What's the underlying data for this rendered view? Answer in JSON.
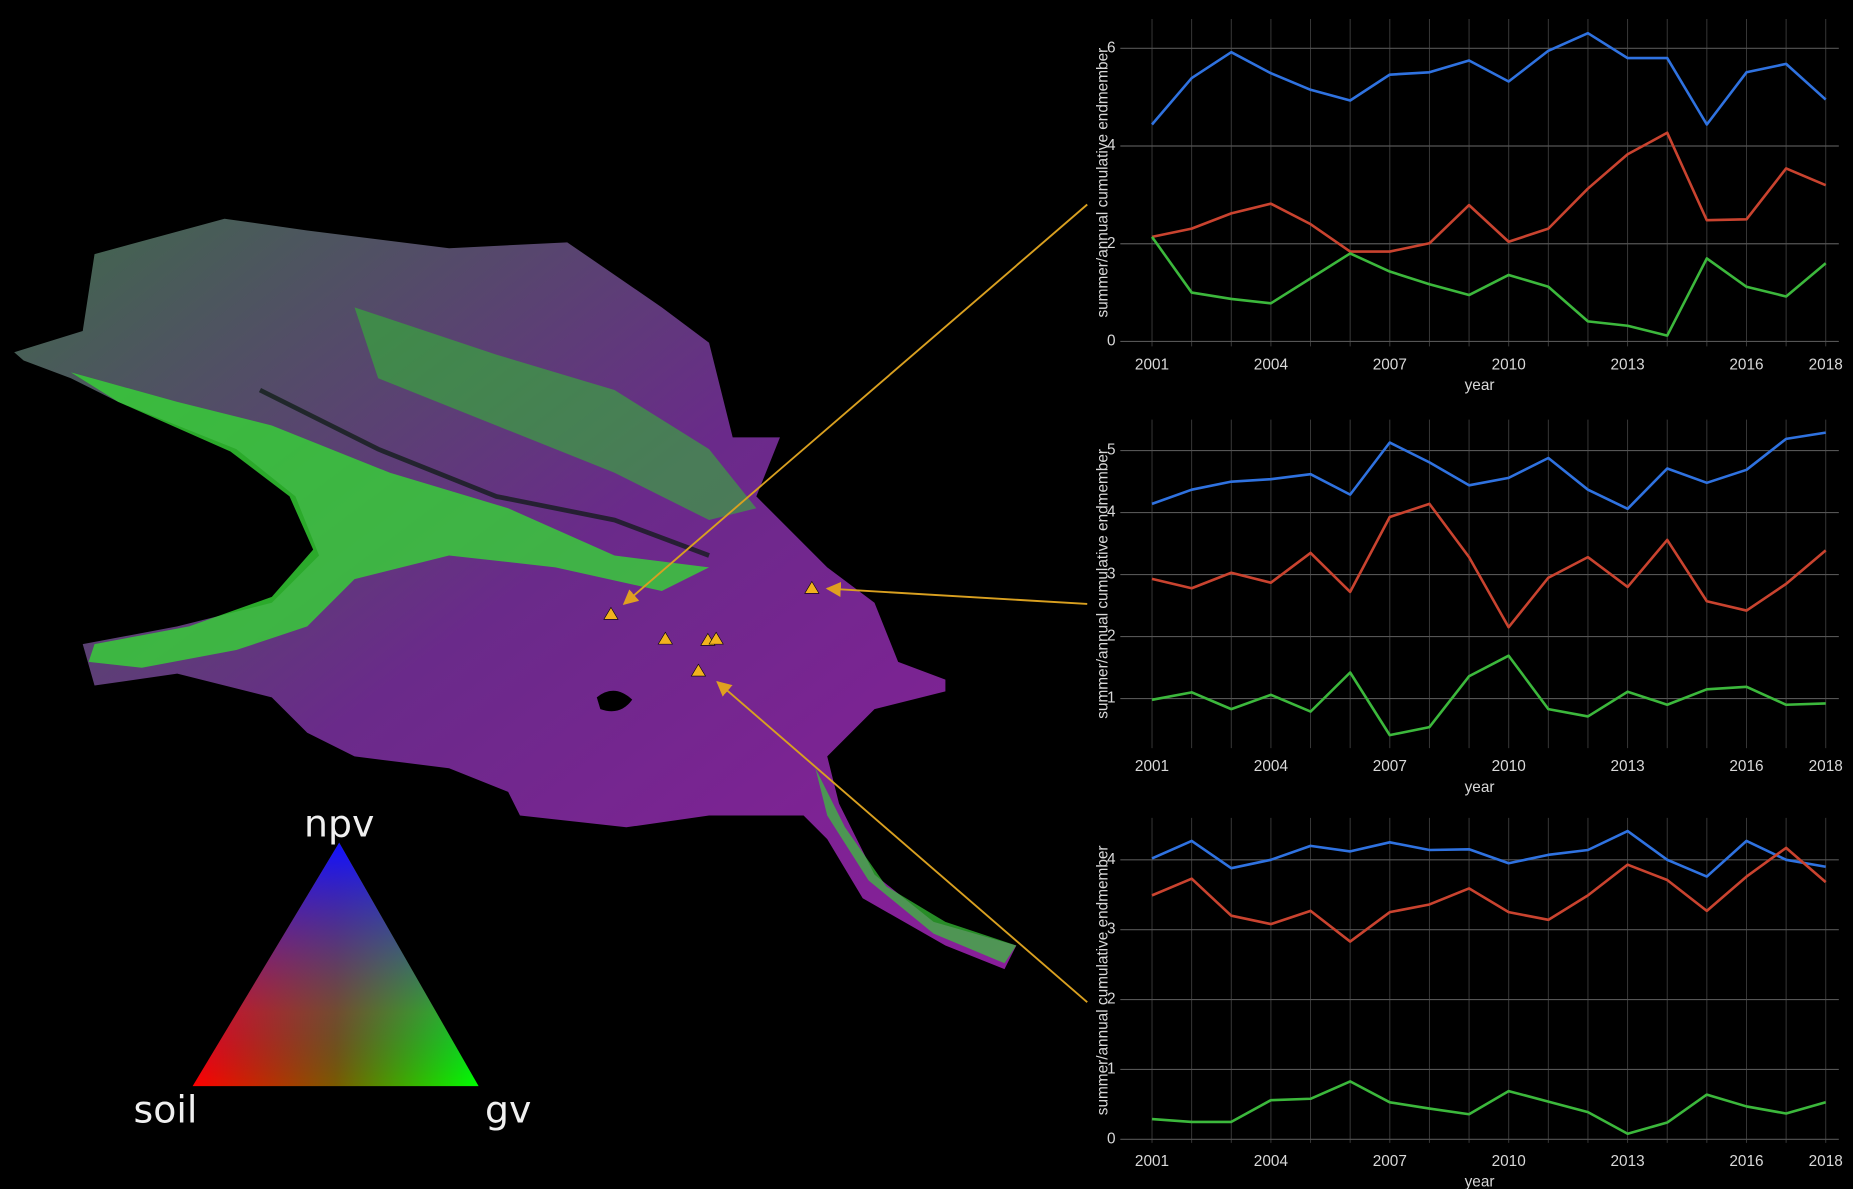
{
  "chart_data": [
    {
      "type": "line",
      "x_label": "year",
      "y_label": "summer/annual cumulative endmember",
      "x": [
        2001,
        2002,
        2003,
        2004,
        2005,
        2006,
        2007,
        2008,
        2009,
        2010,
        2011,
        2012,
        2013,
        2014,
        2015,
        2016,
        2017,
        2018
      ],
      "xlim": [
        2000.2,
        2018.33
      ],
      "xticks": [
        2001,
        2004,
        2007,
        2010,
        2013,
        2016,
        2018
      ],
      "ylim": [
        -0.1,
        6.6
      ],
      "yticks": [
        0,
        2,
        4,
        6
      ],
      "grid": true,
      "series": [
        {
          "color": "#2f72e0",
          "values": [
            4.44,
            5.39,
            5.92,
            5.49,
            5.15,
            4.93,
            5.46,
            5.51,
            5.75,
            5.32,
            5.95,
            6.31,
            5.8,
            5.8,
            4.44,
            5.51,
            5.68,
            4.95
          ]
        },
        {
          "color": "#c9432f",
          "values": [
            2.14,
            2.31,
            2.62,
            2.82,
            2.4,
            1.84,
            1.84,
            2.01,
            2.79,
            2.04,
            2.31,
            3.13,
            3.83,
            4.27,
            2.48,
            2.5,
            3.54,
            3.2
          ]
        },
        {
          "color": "#3cb83c",
          "values": [
            2.14,
            1.0,
            0.87,
            0.78,
            1.29,
            1.8,
            1.43,
            1.17,
            0.95,
            1.36,
            1.12,
            0.41,
            0.32,
            0.12,
            1.7,
            1.12,
            0.92,
            1.6
          ]
        }
      ]
    },
    {
      "type": "line",
      "x_label": "year",
      "y_label": "summer/annual cumulative endmember",
      "x": [
        2001,
        2002,
        2003,
        2004,
        2005,
        2006,
        2007,
        2008,
        2009,
        2010,
        2011,
        2012,
        2013,
        2014,
        2015,
        2016,
        2017,
        2018
      ],
      "xlim": [
        2000.2,
        2018.33
      ],
      "xticks": [
        2001,
        2004,
        2007,
        2010,
        2013,
        2016,
        2018
      ],
      "ylim": [
        0.2,
        5.5
      ],
      "yticks": [
        1,
        2,
        3,
        4,
        5
      ],
      "grid": true,
      "series": [
        {
          "color": "#2f72e0",
          "values": [
            4.14,
            4.37,
            4.5,
            4.54,
            4.62,
            4.29,
            5.13,
            4.81,
            4.44,
            4.56,
            4.88,
            4.37,
            4.06,
            4.71,
            4.48,
            4.69,
            5.19,
            5.29
          ]
        },
        {
          "color": "#c9432f",
          "values": [
            2.93,
            2.78,
            3.03,
            2.87,
            3.35,
            2.72,
            3.93,
            4.14,
            3.28,
            2.15,
            2.95,
            3.28,
            2.8,
            3.56,
            2.57,
            2.42,
            2.85,
            3.39
          ]
        },
        {
          "color": "#3cb83c",
          "values": [
            0.98,
            1.1,
            0.83,
            1.06,
            0.79,
            1.42,
            0.41,
            0.54,
            1.36,
            1.69,
            0.83,
            0.71,
            1.11,
            0.9,
            1.15,
            1.19,
            0.9,
            0.92
          ]
        }
      ]
    },
    {
      "type": "line",
      "x_label": "year",
      "y_label": "summer/annual cumulative endmember",
      "x": [
        2001,
        2002,
        2003,
        2004,
        2005,
        2006,
        2007,
        2008,
        2009,
        2010,
        2011,
        2012,
        2013,
        2014,
        2015,
        2016,
        2017,
        2018
      ],
      "xlim": [
        2000.2,
        2018.33
      ],
      "xticks": [
        2001,
        2004,
        2007,
        2010,
        2013,
        2016,
        2018
      ],
      "ylim": [
        -0.05,
        4.6
      ],
      "yticks": [
        0,
        1,
        2,
        3,
        4
      ],
      "grid": true,
      "series": [
        {
          "color": "#2f72e0",
          "values": [
            4.02,
            4.27,
            3.88,
            4.0,
            4.2,
            4.12,
            4.25,
            4.14,
            4.15,
            3.95,
            4.07,
            4.14,
            4.41,
            4.0,
            3.76,
            4.27,
            4.0,
            3.9
          ]
        },
        {
          "color": "#c9432f",
          "values": [
            3.49,
            3.73,
            3.2,
            3.08,
            3.27,
            2.83,
            3.25,
            3.36,
            3.59,
            3.25,
            3.14,
            3.49,
            3.93,
            3.71,
            3.27,
            3.76,
            4.17,
            3.68
          ]
        },
        {
          "color": "#3cb83c",
          "values": [
            0.29,
            0.25,
            0.25,
            0.56,
            0.58,
            0.83,
            0.53,
            0.44,
            0.36,
            0.69,
            0.54,
            0.39,
            0.08,
            0.24,
            0.64,
            0.47,
            0.37,
            0.53
          ]
        }
      ]
    }
  ],
  "triangle_legend": {
    "top": "npv",
    "left": "soil",
    "right": "gv"
  }
}
